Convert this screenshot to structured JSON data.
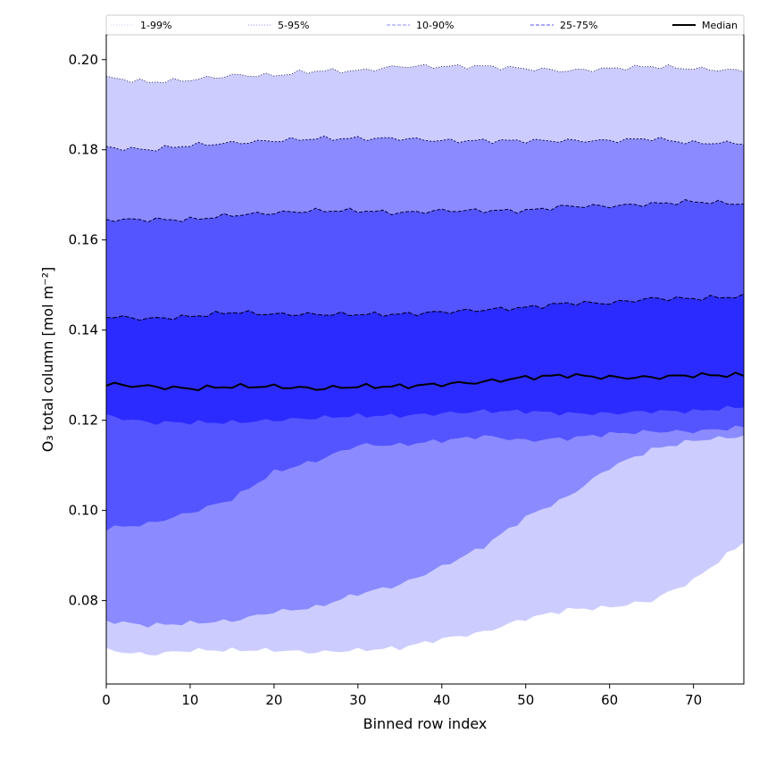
{
  "chart_data": {
    "type": "area",
    "xlabel": "Binned row index",
    "ylabel": "O₃ total column [mol m⁻²]",
    "xlim": [
      0,
      76
    ],
    "ylim": [
      0.0615,
      0.2055
    ],
    "xticks": [
      0,
      10,
      20,
      30,
      40,
      50,
      60,
      70
    ],
    "yticks": [
      0.08,
      0.1,
      0.12,
      0.14,
      0.16,
      0.18,
      0.2
    ],
    "ytick_labels": [
      "0.08",
      "0.10",
      "0.12",
      "0.14",
      "0.16",
      "0.18",
      "0.20"
    ],
    "legend": {
      "position": "top",
      "entries": [
        {
          "label": "1-99%",
          "style": "dotted",
          "color": "#ccccff"
        },
        {
          "label": "5-95%",
          "style": "dotted",
          "color": "#8b8bff"
        },
        {
          "label": "10-90%",
          "style": "dashed",
          "color": "#8b8bff"
        },
        {
          "label": "25-75%",
          "style": "dashed",
          "color": "#5555ff"
        },
        {
          "label": "Median",
          "style": "solid",
          "color": "#000000"
        }
      ]
    },
    "x_key": [
      0,
      5,
      10,
      15,
      20,
      25,
      30,
      35,
      40,
      45,
      50,
      55,
      60,
      65,
      70,
      76
    ],
    "bands": [
      {
        "name": "1-99%",
        "color": "#ccccff",
        "edge": "#000033",
        "dash": "1,2",
        "edge_width": 0.8,
        "upper": [
          0.196,
          0.195,
          0.1955,
          0.1965,
          0.1965,
          0.1975,
          0.1975,
          0.1985,
          0.1985,
          0.1985,
          0.198,
          0.1975,
          0.198,
          0.1985,
          0.198,
          0.1975
        ],
        "lower": [
          0.069,
          0.068,
          0.069,
          0.069,
          0.069,
          0.0685,
          0.069,
          0.0695,
          0.0715,
          0.073,
          0.076,
          0.078,
          0.0785,
          0.08,
          0.0845,
          0.093
        ]
      },
      {
        "name": "5-95%",
        "color": "#8b8bff",
        "edge": "#000044",
        "dash": "2,2",
        "edge_width": 0.9,
        "upper": [
          0.1805,
          0.18,
          0.181,
          0.1815,
          0.182,
          0.1825,
          0.1825,
          0.1825,
          0.182,
          0.182,
          0.182,
          0.182,
          0.182,
          0.1825,
          0.1815,
          0.1815
        ],
        "lower": [
          0.0755,
          0.0745,
          0.075,
          0.0755,
          0.0775,
          0.0785,
          0.0815,
          0.0835,
          0.0875,
          0.092,
          0.0985,
          0.103,
          0.1095,
          0.1135,
          0.1155,
          0.1165
        ]
      },
      {
        "name": "10-90%",
        "color": "#5555ff",
        "edge": "#000033",
        "dash": "4,2",
        "edge_width": 1.0,
        "upper": [
          0.1645,
          0.1645,
          0.1645,
          0.1655,
          0.166,
          0.1665,
          0.1665,
          0.166,
          0.1665,
          0.1665,
          0.1665,
          0.1675,
          0.1675,
          0.168,
          0.1685,
          0.168
        ],
        "lower": [
          0.096,
          0.097,
          0.0995,
          0.1025,
          0.1085,
          0.111,
          0.1145,
          0.1145,
          0.1155,
          0.1165,
          0.1155,
          0.116,
          0.117,
          0.1175,
          0.1175,
          0.1185
        ]
      },
      {
        "name": "25-75%",
        "color": "#2b2bff",
        "edge": "#000022",
        "dash": "5,2",
        "edge_width": 1.1,
        "upper": [
          0.143,
          0.1425,
          0.143,
          0.144,
          0.1435,
          0.1435,
          0.1435,
          0.1435,
          0.144,
          0.1445,
          0.145,
          0.146,
          0.146,
          0.147,
          0.147,
          0.1475
        ],
        "lower": [
          0.121,
          0.1195,
          0.1195,
          0.1195,
          0.12,
          0.1205,
          0.121,
          0.121,
          0.1215,
          0.122,
          0.122,
          0.1215,
          0.1215,
          0.122,
          0.122,
          0.123
        ]
      }
    ],
    "median": [
      0.128,
      0.1275,
      0.127,
      0.1275,
      0.1275,
      0.127,
      0.1275,
      0.1275,
      0.128,
      0.1285,
      0.1295,
      0.13,
      0.1295,
      0.1295,
      0.13,
      0.13
    ]
  }
}
